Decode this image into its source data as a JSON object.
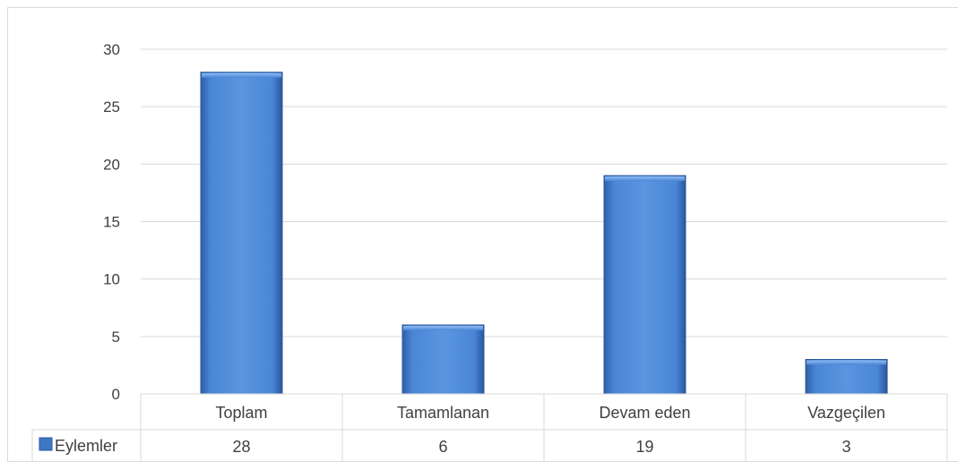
{
  "chart_data": {
    "type": "bar",
    "categories": [
      "Toplam",
      "Tamamlanan",
      "Devam eden",
      "Vazgeçilen"
    ],
    "series": [
      {
        "name": "Eylemler",
        "values": [
          28,
          6,
          19,
          3
        ]
      }
    ],
    "ylim": [
      0,
      30
    ],
    "yticks": [
      0,
      5,
      10,
      15,
      20,
      25,
      30
    ],
    "grid": true,
    "legend": "data-table",
    "data_table": true,
    "colors": {
      "bar": "#4a86d6",
      "bar_dark": "#2f5ea8",
      "bar_light": "#7fb0ec",
      "grid": "#d9d9d9",
      "legend_key": "#3f78c4"
    }
  }
}
